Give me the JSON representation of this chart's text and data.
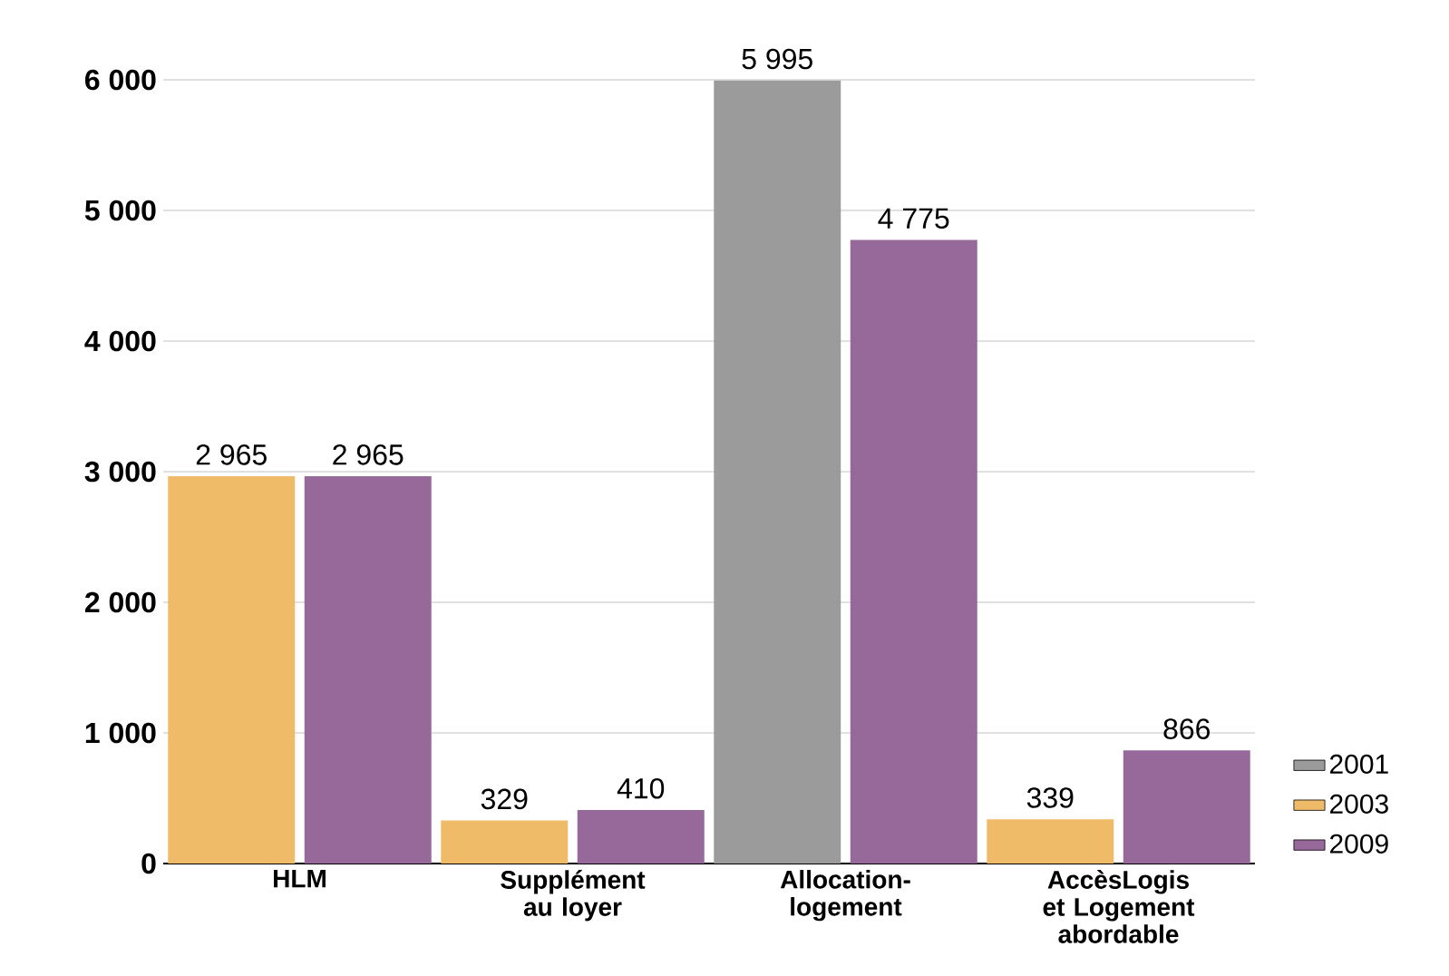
{
  "chart_data": {
    "type": "bar",
    "categories": [
      "HLM",
      "Supplément au loyer",
      "Allocation-logement",
      "AccèsLogis et Logement abordable"
    ],
    "series": [
      {
        "name": "2001",
        "color": "#9b9b9b",
        "values": [
          null,
          null,
          5995,
          null
        ],
        "value_labels": [
          null,
          null,
          "5 995",
          null
        ]
      },
      {
        "name": "2003",
        "color": "#f0bb69",
        "values": [
          2965,
          329,
          null,
          339
        ],
        "value_labels": [
          "2 965",
          "329",
          null,
          "339"
        ]
      },
      {
        "name": "2009",
        "color": "#96699a",
        "values": [
          2965,
          410,
          4775,
          866
        ],
        "value_labels": [
          "2 965",
          "410",
          "4 775",
          "866"
        ]
      }
    ],
    "ylim": [
      0,
      6000
    ],
    "yticks": [
      {
        "value": 0,
        "label": "0"
      },
      {
        "value": 1000,
        "label": "1 000"
      },
      {
        "value": 2000,
        "label": "2 000"
      },
      {
        "value": 3000,
        "label": "3 000"
      },
      {
        "value": 4000,
        "label": "4 000"
      },
      {
        "value": 5000,
        "label": "5 000"
      },
      {
        "value": 6000,
        "label": "6 000"
      }
    ],
    "grid": "y",
    "legend": "bottom right"
  }
}
